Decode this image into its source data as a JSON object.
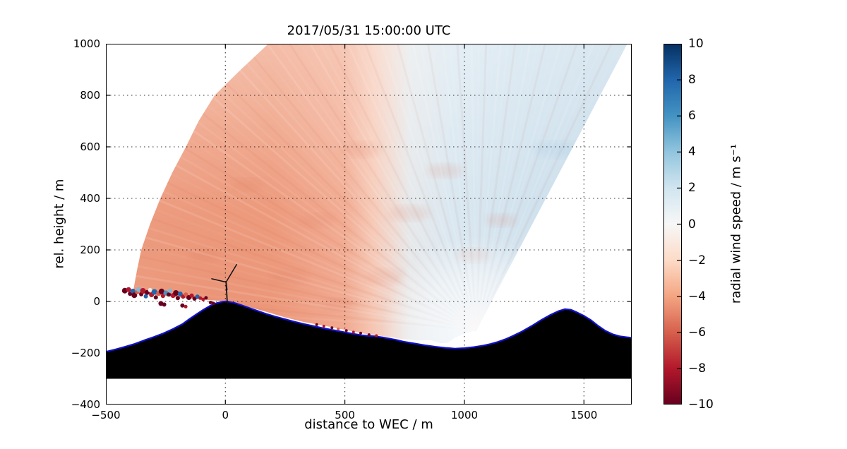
{
  "title": "2017/05/31 15:00:00 UTC",
  "axes": {
    "x": {
      "label": "distance to WEC / m",
      "min": -500,
      "max": 1700,
      "ticks": [
        {
          "v": -500,
          "t": "−500"
        },
        {
          "v": 0,
          "t": "0"
        },
        {
          "v": 500,
          "t": "500"
        },
        {
          "v": 1000,
          "t": "1000"
        },
        {
          "v": 1500,
          "t": "1500"
        }
      ]
    },
    "y": {
      "label": "rel. height / m",
      "min": -400,
      "max": 1000,
      "ticks": [
        {
          "v": 1000,
          "t": "1000"
        },
        {
          "v": 800,
          "t": "800"
        },
        {
          "v": 600,
          "t": "600"
        },
        {
          "v": 400,
          "t": "400"
        },
        {
          "v": 200,
          "t": "200"
        },
        {
          "v": 0,
          "t": "0"
        },
        {
          "v": -200,
          "t": "−200"
        },
        {
          "v": -400,
          "t": "−400"
        }
      ]
    }
  },
  "colorbar": {
    "label": "radial wind speed / m s⁻¹",
    "min": -10,
    "max": 10,
    "ticks": [
      {
        "v": 10,
        "t": "10"
      },
      {
        "v": 8,
        "t": "8"
      },
      {
        "v": 6,
        "t": "6"
      },
      {
        "v": 4,
        "t": "4"
      },
      {
        "v": 2,
        "t": "2"
      },
      {
        "v": 0,
        "t": "0"
      },
      {
        "v": -2,
        "t": "−2"
      },
      {
        "v": -4,
        "t": "−4"
      },
      {
        "v": -6,
        "t": "−6"
      },
      {
        "v": -8,
        "t": "−8"
      },
      {
        "v": -10,
        "t": "−10"
      }
    ],
    "stops": [
      {
        "v": 10,
        "c": "#053061"
      },
      {
        "v": 8,
        "c": "#2166ac"
      },
      {
        "v": 6,
        "c": "#4393c3"
      },
      {
        "v": 4,
        "c": "#92c5de"
      },
      {
        "v": 2,
        "c": "#d1e5f0"
      },
      {
        "v": 0,
        "c": "#f7f7f7"
      },
      {
        "v": -2,
        "c": "#fddbc7"
      },
      {
        "v": -4,
        "c": "#f4a582"
      },
      {
        "v": -6,
        "c": "#d6604d"
      },
      {
        "v": -8,
        "c": "#b2182b"
      },
      {
        "v": -10,
        "c": "#67001f"
      }
    ]
  },
  "chart_data": {
    "type": "heatmap",
    "description": "Doppler lidar sector scan (RHI) of radial wind speed above terrain; wind energy converter (WEC) at x=0 on hilltop; lidar located near x≈1050 m, rel. height ≈ −112 m; negative (red, toward ≈ −3 to −5 m/s) radial speeds left of the lidar, positive (blue, ≈ +1 to +2 m/s) in the steep right-hand sector.",
    "scan": {
      "vertex": [
        1050,
        -112
      ],
      "max_range_m": 1450,
      "right_edge": [
        [
          1690,
          1015
        ]
      ],
      "arc": [
        [
          180,
          1000
        ],
        [
          65,
          900
        ],
        [
          -45,
          800
        ],
        [
          -112,
          700
        ],
        [
          -165,
          600
        ],
        [
          -222,
          500
        ],
        [
          -272,
          400
        ],
        [
          -315,
          300
        ],
        [
          -352,
          200
        ],
        [
          -370,
          120
        ],
        [
          -382,
          60
        ],
        [
          -387,
          32
        ]
      ],
      "lower_edge": [
        [
          -390,
          32
        ],
        [
          -300,
          26
        ],
        [
          -200,
          16
        ],
        [
          -100,
          7
        ],
        [
          -30,
          3
        ],
        [
          0,
          2
        ],
        [
          40,
          -6
        ],
        [
          100,
          -22
        ],
        [
          170,
          -40
        ],
        [
          250,
          -62
        ],
        [
          330,
          -80
        ],
        [
          420,
          -95
        ],
        [
          510,
          -112
        ],
        [
          600,
          -128
        ],
        [
          670,
          -136
        ],
        [
          740,
          -146
        ],
        [
          800,
          -151
        ],
        [
          860,
          -150
        ],
        [
          900,
          -162
        ],
        [
          930,
          -160
        ],
        [
          960,
          -140
        ],
        [
          1000,
          -125
        ],
        [
          1030,
          -116
        ]
      ],
      "velocity_summary": [
        {
          "region": "main sector, x < ~550 m, all heights",
          "radial_wind_speed_ms": -3.5
        },
        {
          "region": "near-surface lower left around turbine",
          "radial_wind_speed_ms": -4.5
        },
        {
          "region": "mid sector x ≈ 550–700 m",
          "radial_wind_speed_ms": -1
        },
        {
          "region": "right steep sector x > ~700 m",
          "radial_wind_speed_ms": 1.5
        }
      ]
    },
    "fan_gradient": [
      {
        "offset": 0.0,
        "c": "#efa285"
      },
      {
        "offset": 0.05,
        "c": "#efa285"
      },
      {
        "offset": 0.318,
        "c": "#efa082"
      },
      {
        "offset": 0.455,
        "c": "#f3b097"
      },
      {
        "offset": 0.509,
        "c": "#f7cdbb"
      },
      {
        "offset": 0.545,
        "c": "#f0dcd4"
      },
      {
        "offset": 0.577,
        "c": "#e6e9eb"
      },
      {
        "offset": 0.659,
        "c": "#d9e7f0"
      },
      {
        "offset": 0.818,
        "c": "#cfe1ed"
      },
      {
        "offset": 1.0,
        "c": "#c7dbe9"
      }
    ],
    "terrain_profile": [
      [
        -500,
        -195
      ],
      [
        -460,
        -186
      ],
      [
        -420,
        -176
      ],
      [
        -380,
        -165
      ],
      [
        -340,
        -151
      ],
      [
        -300,
        -138
      ],
      [
        -260,
        -124
      ],
      [
        -220,
        -107
      ],
      [
        -180,
        -88
      ],
      [
        -150,
        -68
      ],
      [
        -120,
        -49
      ],
      [
        -90,
        -31
      ],
      [
        -60,
        -15
      ],
      [
        -35,
        -6
      ],
      [
        -15,
        -1
      ],
      [
        0,
        0
      ],
      [
        15,
        -1
      ],
      [
        35,
        -5
      ],
      [
        60,
        -12
      ],
      [
        90,
        -22
      ],
      [
        130,
        -35
      ],
      [
        170,
        -48
      ],
      [
        210,
        -59
      ],
      [
        250,
        -69
      ],
      [
        290,
        -79
      ],
      [
        330,
        -88
      ],
      [
        370,
        -96
      ],
      [
        410,
        -104
      ],
      [
        450,
        -111
      ],
      [
        490,
        -118
      ],
      [
        530,
        -125
      ],
      [
        570,
        -131
      ],
      [
        600,
        -134
      ],
      [
        625,
        -135
      ],
      [
        655,
        -139
      ],
      [
        685,
        -144
      ],
      [
        715,
        -149
      ],
      [
        745,
        -156
      ],
      [
        790,
        -163
      ],
      [
        835,
        -170
      ],
      [
        880,
        -176
      ],
      [
        920,
        -180
      ],
      [
        960,
        -183
      ],
      [
        1000,
        -181
      ],
      [
        1040,
        -177
      ],
      [
        1080,
        -171
      ],
      [
        1110,
        -165
      ],
      [
        1140,
        -157
      ],
      [
        1170,
        -147
      ],
      [
        1200,
        -135
      ],
      [
        1240,
        -117
      ],
      [
        1280,
        -96
      ],
      [
        1320,
        -73
      ],
      [
        1360,
        -52
      ],
      [
        1395,
        -37
      ],
      [
        1420,
        -30
      ],
      [
        1445,
        -32
      ],
      [
        1470,
        -42
      ],
      [
        1500,
        -56
      ],
      [
        1530,
        -73
      ],
      [
        1560,
        -95
      ],
      [
        1590,
        -114
      ],
      [
        1620,
        -127
      ],
      [
        1650,
        -135
      ],
      [
        1680,
        -139
      ],
      [
        1700,
        -141
      ]
    ],
    "terrain_base_m": -300,
    "palette": {
      "dark_red": "#67001f",
      "red": "#b2182b",
      "salmon": "#d6604d",
      "light": "#f2ebe6",
      "light_blue": "#7fb8d9",
      "mid_blue": "#4393c3",
      "dark_blue": "#2166ac"
    },
    "scatter_points": [
      [
        -421,
        42,
        "dark_red",
        4
      ],
      [
        -405,
        46,
        "red",
        3.5
      ],
      [
        -399,
        30,
        "dark_red",
        3
      ],
      [
        -387,
        40,
        "dark_blue",
        3.5
      ],
      [
        -381,
        24,
        "dark_red",
        4
      ],
      [
        -369,
        36,
        "salmon",
        3
      ],
      [
        -362,
        46,
        "light_blue",
        3.5
      ],
      [
        -352,
        28,
        "dark_red",
        3
      ],
      [
        -345,
        41,
        "red",
        4
      ],
      [
        -333,
        20,
        "dark_blue",
        3
      ],
      [
        -327,
        35,
        "dark_red",
        3.5
      ],
      [
        -315,
        44,
        "light",
        3
      ],
      [
        -309,
        26,
        "red",
        3.5
      ],
      [
        -297,
        37,
        "dark_blue",
        4
      ],
      [
        -291,
        16,
        "dark_red",
        3
      ],
      [
        -279,
        31,
        "salmon",
        3.5
      ],
      [
        -267,
        39,
        "dark_red",
        4
      ],
      [
        -261,
        21,
        "red",
        3
      ],
      [
        -249,
        33,
        "mid_blue",
        3.5
      ],
      [
        -237,
        27,
        "dark_red",
        3
      ],
      [
        -231,
        41,
        "light_blue",
        3
      ],
      [
        -219,
        23,
        "red",
        3.5
      ],
      [
        -207,
        33,
        "dark_red",
        4
      ],
      [
        -199,
        13,
        "dark_red",
        3
      ],
      [
        -189,
        29,
        "dark_blue",
        3.5
      ],
      [
        -177,
        19,
        "red",
        3
      ],
      [
        -165,
        27,
        "salmon",
        3
      ],
      [
        -153,
        15,
        "dark_red",
        3.5
      ],
      [
        -141,
        23,
        "red",
        3
      ],
      [
        -129,
        11,
        "dark_red",
        3
      ],
      [
        -117,
        19,
        "dark_blue",
        3
      ],
      [
        -105,
        13,
        "red",
        2.5
      ],
      [
        -93,
        8,
        "red",
        2.5
      ],
      [
        -81,
        14,
        "dark_red",
        2.5
      ],
      [
        -270,
        -8,
        "dark_red",
        3.5
      ],
      [
        -256,
        -12,
        "dark_red",
        3
      ],
      [
        -180,
        -16,
        "dark_red",
        3
      ],
      [
        -166,
        -20,
        "red",
        2.5
      ],
      [
        -62,
        -4,
        "dark_red",
        2.5
      ],
      [
        -50,
        -8,
        "dark_red",
        2.5
      ],
      [
        382,
        -90,
        "dark_red",
        2
      ],
      [
        412,
        -96,
        "red",
        2
      ],
      [
        446,
        -102,
        "dark_red",
        2
      ],
      [
        472,
        -107,
        "salmon",
        2
      ],
      [
        506,
        -113,
        "dark_red",
        2
      ],
      [
        536,
        -119,
        "red",
        2
      ],
      [
        566,
        -123,
        "dark_red",
        2
      ],
      [
        601,
        -129,
        "dark_red",
        2
      ],
      [
        632,
        -133,
        "red",
        2
      ]
    ],
    "turbine": {
      "x_m": 0,
      "base": [
        8,
        -6
      ],
      "hub": [
        3,
        75
      ],
      "blade_tips": [
        [
          47,
          143
        ],
        [
          -57,
          88
        ],
        [
          7,
          45
        ]
      ]
    }
  },
  "colors": {
    "terrain_fill": "#000000",
    "terrain_line": "#1111cc",
    "grid": "#000000",
    "background": "#ffffff"
  }
}
